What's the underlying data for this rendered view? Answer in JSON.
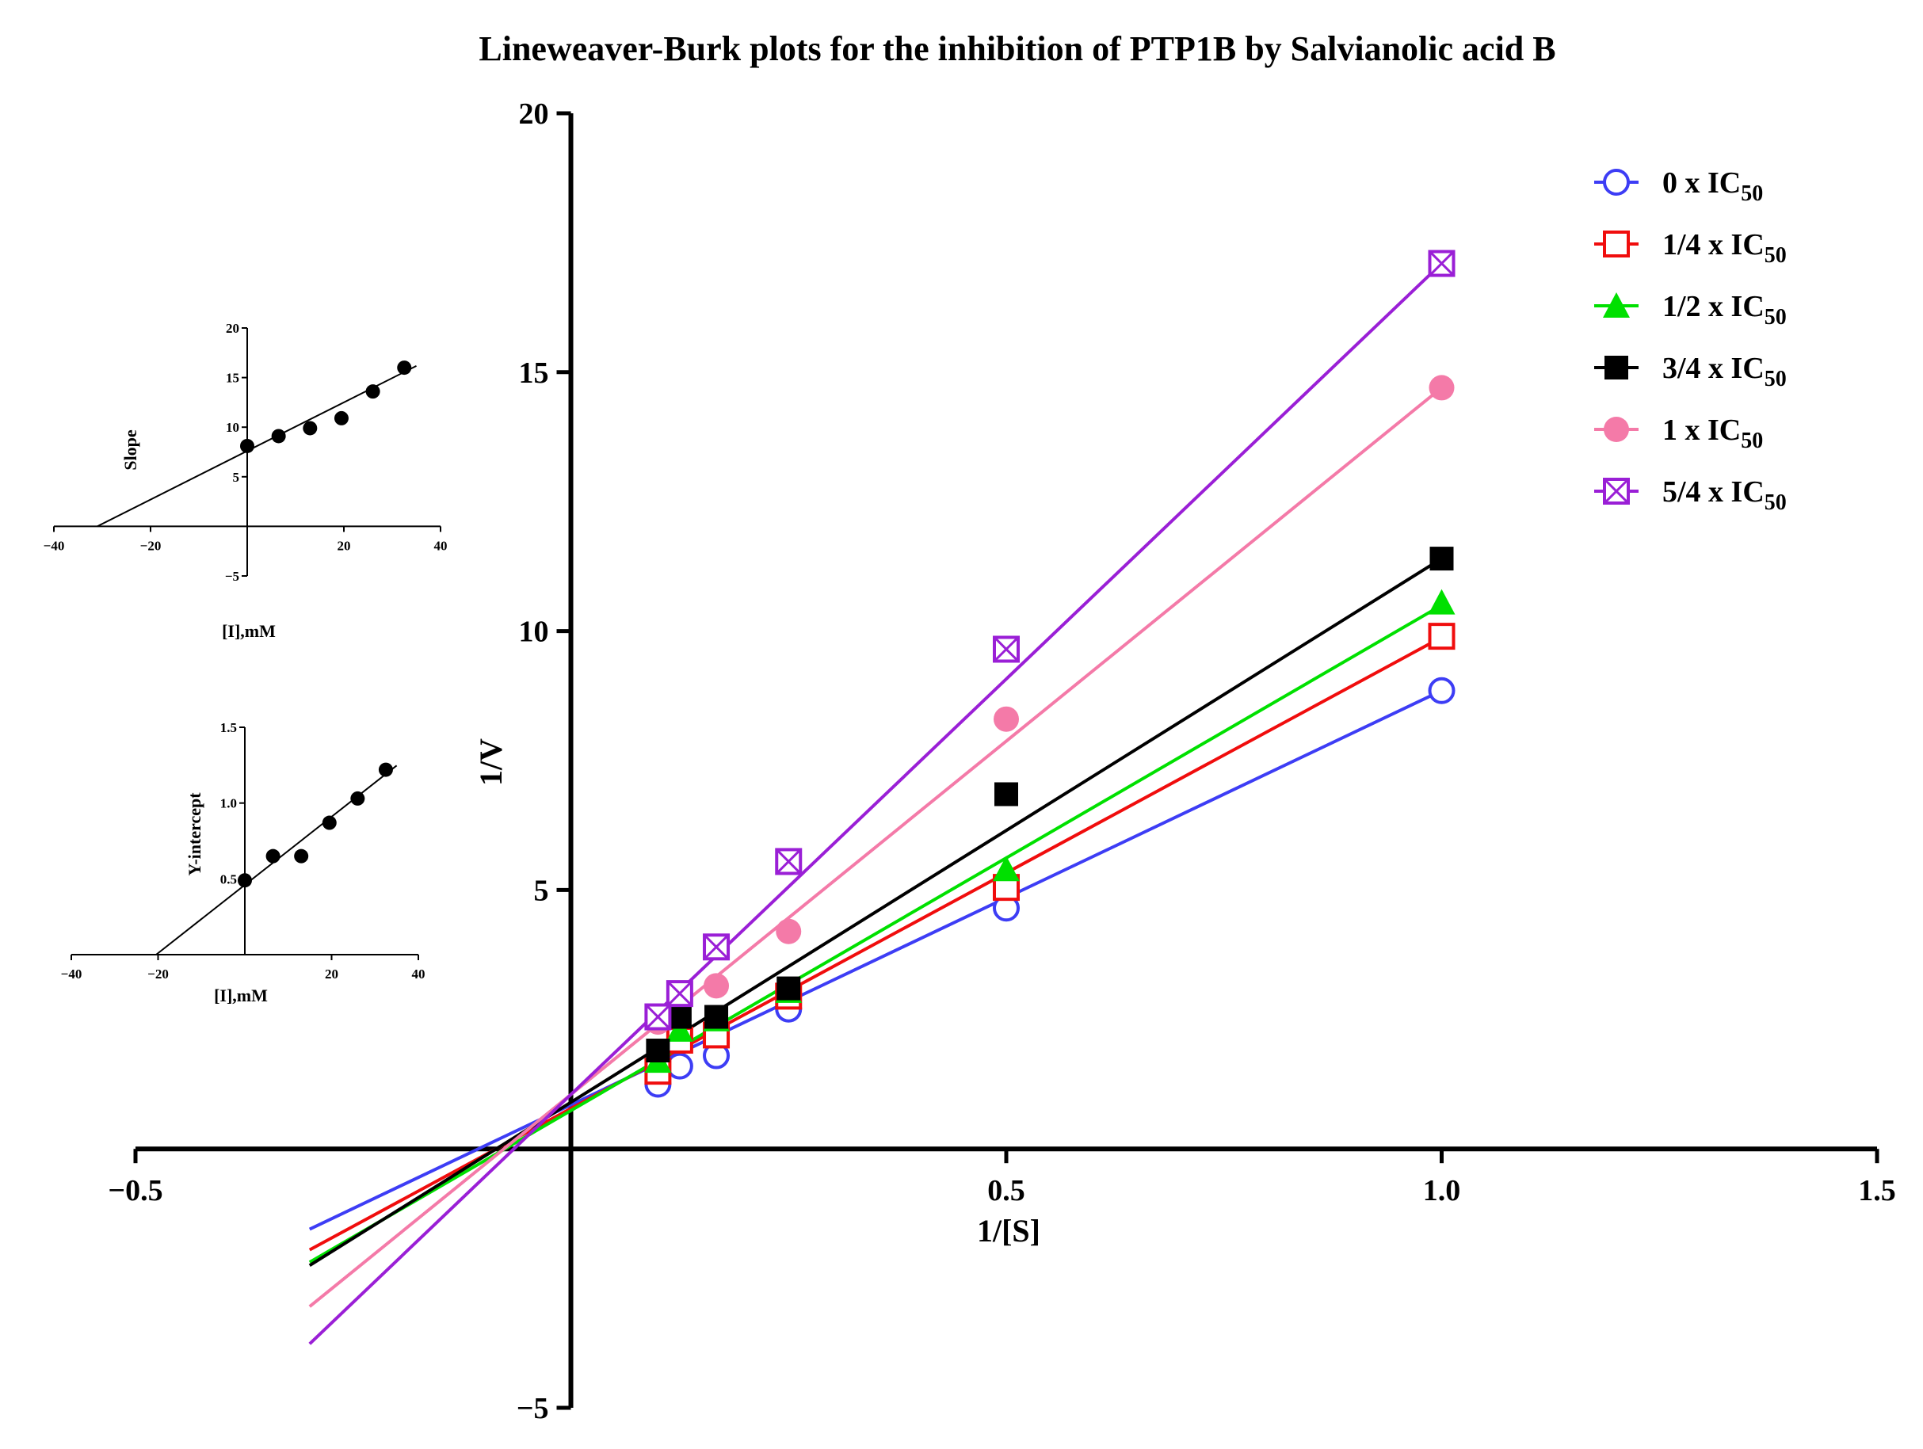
{
  "title": "Lineweaver-Burk plots for the inhibition of PTP1B by Salvianolic acid B",
  "colors": {
    "s0": "#3d3df5",
    "s1": "#f00d0d",
    "s2": "#00e000",
    "s3": "#000000",
    "s4": "#f47aa8",
    "s5": "#9a1fd6",
    "axis": "#000000"
  },
  "chart_data": [
    {
      "id": "main",
      "type": "line",
      "title": "Lineweaver-Burk plots for the inhibition of PTP1B by Salvianolic acid B",
      "xlabel": "1/[S]",
      "ylabel": "1/V",
      "xlim": [
        -0.5,
        1.5
      ],
      "ylim": [
        -5,
        20
      ],
      "xticks": [
        -0.5,
        0.5,
        1.0,
        1.5
      ],
      "xtick_labels": [
        "−0.5",
        "0.5",
        "1.0",
        "1.5"
      ],
      "yticks": [
        -5,
        5,
        10,
        15,
        20
      ],
      "ytick_labels": [
        "−5",
        "5",
        "10",
        "15",
        "20"
      ],
      "grid": false,
      "legend_position": "top-right",
      "line_x_range": [
        -0.3,
        1.0
      ],
      "series": [
        {
          "name": "0  x IC50",
          "legend_main": "0  x IC",
          "legend_sub": "50",
          "marker": "open-circle",
          "color_key": "s0",
          "x": [
            0.1,
            0.125,
            0.167,
            0.25,
            0.5,
            1.0
          ],
          "y": [
            1.25,
            1.6,
            1.8,
            2.7,
            4.65,
            8.85
          ],
          "fit_intercept": 0.85,
          "fit_slope": 8.0
        },
        {
          "name": "1/4  x IC50",
          "legend_main": "1/4  x IC",
          "legend_sub": "50",
          "marker": "open-square",
          "color_key": "s1",
          "x": [
            0.1,
            0.125,
            0.167,
            0.25,
            0.5,
            1.0
          ],
          "y": [
            1.5,
            2.1,
            2.2,
            2.95,
            5.05,
            9.9
          ],
          "fit_intercept": 0.78,
          "fit_slope": 9.1
        },
        {
          "name": "1/2  x IC50",
          "legend_main": "1/2  x IC",
          "legend_sub": "50",
          "marker": "filled-triangle",
          "color_key": "s2",
          "x": [
            0.1,
            0.125,
            0.167,
            0.25,
            0.5,
            1.0
          ],
          "y": [
            1.7,
            2.3,
            2.5,
            3.05,
            5.4,
            10.55
          ],
          "fit_intercept": 0.74,
          "fit_slope": 9.76
        },
        {
          "name": "3/4  x IC50",
          "legend_main": "3/4  x IC",
          "legend_sub": "50",
          "marker": "filled-square",
          "color_key": "s3",
          "x": [
            0.1,
            0.125,
            0.167,
            0.25,
            0.5,
            1.0
          ],
          "y": [
            1.9,
            2.55,
            2.55,
            3.1,
            6.85,
            11.4
          ],
          "fit_intercept": 0.9,
          "fit_slope": 10.5
        },
        {
          "name": "1  x IC50",
          "legend_main": "1  x IC",
          "legend_sub": "50",
          "marker": "filled-circle",
          "color_key": "s4",
          "x": [
            0.1,
            0.125,
            0.167,
            0.25,
            0.5,
            1.0
          ],
          "y": [
            2.45,
            3.0,
            3.15,
            4.2,
            8.3,
            14.7
          ],
          "fit_intercept": 1.05,
          "fit_slope": 13.65
        },
        {
          "name": "5/4  x IC50",
          "legend_main": "5/4  x IC",
          "legend_sub": "50",
          "marker": "crossed-square",
          "color_key": "s5",
          "x": [
            0.1,
            0.125,
            0.167,
            0.25,
            0.5,
            1.0
          ],
          "y": [
            2.55,
            3.0,
            3.9,
            5.55,
            9.65,
            17.1
          ],
          "fit_intercept": 1.05,
          "fit_slope": 16.05
        }
      ]
    },
    {
      "id": "inset-slope",
      "type": "scatter",
      "title": "",
      "xlabel": "[I],mM",
      "ylabel": "Slope",
      "xlim": [
        -40,
        40
      ],
      "ylim": [
        -5,
        20
      ],
      "xticks": [
        -40,
        -20,
        20,
        40
      ],
      "xtick_labels": [
        "−40",
        "−20",
        "20",
        "40"
      ],
      "yticks": [
        -5,
        5,
        10,
        15,
        20
      ],
      "ytick_labels": [
        "−5",
        "5",
        "10",
        "15",
        "20"
      ],
      "x": [
        0,
        6.5,
        13,
        19.5,
        26,
        32.5
      ],
      "y": [
        8.1,
        9.1,
        9.9,
        10.9,
        13.6,
        16.0
      ],
      "fit_x_range": [
        -31,
        35
      ],
      "fit_intercept": 7.6,
      "fit_slope": 0.245
    },
    {
      "id": "inset-intercept",
      "type": "scatter",
      "title": "",
      "xlabel": "[I],mM",
      "ylabel": "Y-intercept",
      "xlim": [
        -40,
        40
      ],
      "ylim": [
        0,
        1.5
      ],
      "xticks": [
        -40,
        -20,
        20,
        40
      ],
      "xtick_labels": [
        "−40",
        "−20",
        "20",
        "40"
      ],
      "yticks": [
        0.5,
        1.0,
        1.5
      ],
      "ytick_labels": [
        "0.5",
        "1.0",
        "1.5"
      ],
      "x": [
        0,
        6.5,
        13,
        19.5,
        26,
        32.5
      ],
      "y": [
        0.49,
        0.65,
        0.65,
        0.87,
        1.03,
        1.22
      ],
      "fit_x_range": [
        -20.5,
        35
      ],
      "fit_intercept": 0.46,
      "fit_slope": 0.0225
    }
  ]
}
